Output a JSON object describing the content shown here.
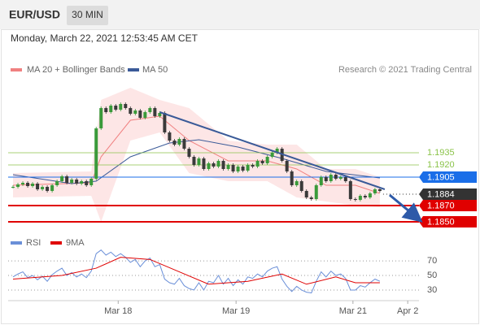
{
  "header": {
    "symbol": "EUR/USD",
    "interval": "30 MIN",
    "timestamp": "Monday, March 22, 2021 12:53:45 AM CET"
  },
  "chart_data": [
    {
      "type": "candlestick",
      "source": "Research © 2021 Trading Central",
      "up_color": "#3a9a3a",
      "down_color": "#3a3a3a",
      "close": [
        1.1893,
        1.1896,
        1.1898,
        1.1894,
        1.1897,
        1.189,
        1.1893,
        1.1888,
        1.1895,
        1.19,
        1.1906,
        1.1898,
        1.1902,
        1.1897,
        1.19,
        1.1895,
        1.1903,
        1.1965,
        1.199,
        1.1985,
        1.1993,
        1.1988,
        1.1995,
        1.199,
        1.1983,
        1.1987,
        1.1978,
        1.1985,
        1.199,
        1.198,
        1.1984,
        1.196,
        1.195,
        1.1945,
        1.1952,
        1.194,
        1.193,
        1.192,
        1.1928,
        1.1915,
        1.1922,
        1.1918,
        1.1925,
        1.1915,
        1.192,
        1.1912,
        1.1918,
        1.1913,
        1.192,
        1.1918,
        1.1925,
        1.1922,
        1.193,
        1.1935,
        1.194,
        1.1925,
        1.1912,
        1.1895,
        1.19,
        1.1888,
        1.188,
        1.1878,
        1.1895,
        1.1905,
        1.19,
        1.1908,
        1.1903,
        1.1905,
        1.19,
        1.1878,
        1.1877,
        1.1882,
        1.188,
        1.1885,
        1.189,
        1.1888
      ],
      "ma20": {
        "name": "MA 20 + Bollinger Bands",
        "color": "#f08080",
        "band_color": "#fde0e0",
        "x": [
          0,
          16,
          18,
          24,
          30,
          36,
          44,
          52,
          58,
          64,
          70,
          75
        ],
        "values": [
          1.1895,
          1.1898,
          1.193,
          1.1975,
          1.198,
          1.195,
          1.1925,
          1.1925,
          1.1915,
          1.1895,
          1.1895,
          1.1885
        ],
        "upper": [
          1.191,
          1.1912,
          1.2,
          1.2015,
          1.2,
          1.199,
          1.195,
          1.1945,
          1.1945,
          1.1915,
          1.1915,
          1.1905
        ],
        "lower": [
          1.188,
          1.1882,
          1.185,
          1.195,
          1.196,
          1.191,
          1.19,
          1.19,
          1.188,
          1.1875,
          1.187,
          1.1868
        ]
      },
      "ma50": {
        "name": "MA 50",
        "color": "#3a5a98",
        "x": [
          0,
          12,
          17,
          24,
          32,
          38,
          46,
          55,
          64,
          75
        ],
        "values": [
          1.1908,
          1.1897,
          1.19,
          1.193,
          1.1947,
          1.1951,
          1.1942,
          1.1928,
          1.1912,
          1.1904
        ]
      },
      "trendline": {
        "color": "#3a5a98",
        "x": [
          30,
          76
        ],
        "values": [
          1.1985,
          1.189
        ]
      },
      "arrow": {
        "color": "#2e5aa8",
        "x": [
          77,
          83
        ],
        "values": [
          1.1883,
          1.1853
        ]
      },
      "levels": [
        {
          "value": 1.1935,
          "label": "1.1935",
          "color": "#8bc34a",
          "kind": "text"
        },
        {
          "value": 1.192,
          "label": "1.1920",
          "color": "#8bc34a",
          "kind": "text"
        },
        {
          "value": 1.1905,
          "label": "1.1905",
          "color": "#1a6ee8",
          "kind": "box"
        },
        {
          "value": 1.1884,
          "label": "1.1884",
          "color": "#333333",
          "kind": "current"
        },
        {
          "value": 1.187,
          "label": "1.1870",
          "color": "#e00000",
          "kind": "box"
        },
        {
          "value": 1.185,
          "label": "1.1850",
          "color": "#e00000",
          "kind": "box"
        }
      ],
      "x_labels": {
        "x": [
          21.5,
          45.6,
          69.5,
          80.7
        ],
        "labels": [
          "Mar 18",
          "Mar 19",
          "Mar 21",
          "Apr 2"
        ]
      },
      "xlim": [
        -1,
        83
      ],
      "ylim": [
        1.1838,
        1.2023
      ]
    },
    {
      "type": "line",
      "series": [
        {
          "name": "RSI",
          "color": "#6a8fd8",
          "values": [
            48,
            52,
            55,
            47,
            50,
            44,
            49,
            42,
            51,
            56,
            60,
            50,
            54,
            48,
            52,
            47,
            56,
            80,
            85,
            78,
            82,
            76,
            80,
            75,
            68,
            72,
            62,
            70,
            74,
            62,
            65,
            45,
            40,
            38,
            46,
            36,
            32,
            30,
            40,
            30,
            42,
            40,
            50,
            38,
            46,
            36,
            44,
            38,
            48,
            46,
            52,
            48,
            56,
            60,
            62,
            45,
            35,
            28,
            35,
            30,
            27,
            26,
            42,
            55,
            48,
            56,
            50,
            52,
            46,
            30,
            30,
            36,
            34,
            40,
            45,
            42
          ]
        },
        {
          "name": "9MA",
          "color": "#e00000",
          "x": [
            0,
            10,
            17,
            22,
            28,
            34,
            40,
            48,
            55,
            60,
            66,
            70,
            75
          ],
          "values": [
            45,
            50,
            60,
            75,
            72,
            55,
            38,
            42,
            52,
            38,
            48,
            40,
            40
          ]
        }
      ],
      "xlim": [
        -1,
        83
      ],
      "ylim": [
        21,
        88
      ],
      "yticks": [
        70,
        50,
        30
      ]
    }
  ]
}
